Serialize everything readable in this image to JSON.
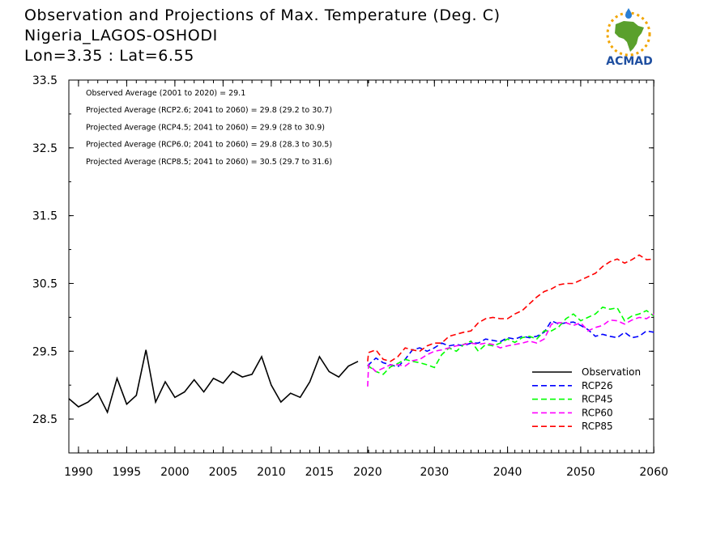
{
  "header": {
    "line1": "Observation and Projections of Max. Temperature (Deg. C)",
    "line2": "Nigeria_LAGOS-OSHODI",
    "line3": "Lon=3.35 : Lat=6.55"
  },
  "logo": {
    "text": "ACMAD",
    "icon": "africa-map-logo",
    "colors": {
      "africa": "#5aa02c",
      "text": "#1f4fa0",
      "sun": "#f2a500",
      "drop": "#2a7fd4"
    }
  },
  "annotations": [
    "Observed Average (2001 to 2020) = 29.1",
    "Projected Average (RCP2.6; 2041 to 2060) = 29.8 (29.2 to 30.7)",
    "Projected Average (RCP4.5; 2041 to 2060) = 29.9 (28 to 30.9)",
    "Projected Average (RCP6.0; 2041 to 2060) = 29.8 (28.3 to 30.5)",
    "Projected Average (RCP8.5; 2041 to 2060) = 30.5 (29.7 to 31.6)"
  ],
  "chart_data": {
    "type": "line",
    "title": "Observation and Projections of Max. Temperature (Deg. C)",
    "xlabel": "",
    "ylabel": "",
    "x_ticks": [
      "1990",
      "1995",
      "2000",
      "2005",
      "2010",
      "2015",
      "2020",
      "2030",
      "2040",
      "2050",
      "2060"
    ],
    "y_ticks": [
      "28.5",
      "29.5",
      "30.5",
      "31.5",
      "32.5",
      "33.5"
    ],
    "ylim": [
      28,
      33.5
    ],
    "grid": false,
    "legend_placement": "bottom-right",
    "series": [
      {
        "name": "Observation",
        "color": "#000000",
        "dashed": false,
        "x": [
          1989,
          1990,
          1991,
          1992,
          1993,
          1994,
          1995,
          1996,
          1997,
          1998,
          1999,
          2000,
          2001,
          2002,
          2003,
          2004,
          2005,
          2006,
          2007,
          2008,
          2009,
          2010,
          2011,
          2012,
          2013,
          2014,
          2015,
          2016,
          2017,
          2018,
          2019
        ],
        "values": [
          28.8,
          28.68,
          28.75,
          28.88,
          28.6,
          29.1,
          28.72,
          28.85,
          29.52,
          28.75,
          29.05,
          28.82,
          28.9,
          29.08,
          28.9,
          29.1,
          29.03,
          29.2,
          29.12,
          29.16,
          29.42,
          29.0,
          28.75,
          28.88,
          28.82,
          29.05,
          29.42,
          29.2,
          29.12,
          29.28,
          29.35
        ]
      },
      {
        "name": "RCP26",
        "color": "#0000ff",
        "dashed": true,
        "x": [
          2020,
          2021,
          2022,
          2023,
          2024,
          2025,
          2026,
          2027,
          2028,
          2029,
          2030,
          2031,
          2032,
          2033,
          2034,
          2035,
          2036,
          2037,
          2038,
          2039,
          2040,
          2041,
          2042,
          2043,
          2044,
          2045,
          2046,
          2047,
          2048,
          2049,
          2050,
          2051,
          2052,
          2053,
          2054,
          2055,
          2056,
          2057,
          2058,
          2059,
          2060
        ],
        "values": [
          29.28,
          29.3,
          29.4,
          29.33,
          29.3,
          29.27,
          29.38,
          29.52,
          29.55,
          29.5,
          29.55,
          29.62,
          29.58,
          29.6,
          29.58,
          29.62,
          29.62,
          29.68,
          29.66,
          29.64,
          29.7,
          29.68,
          29.72,
          29.7,
          29.72,
          29.78,
          29.95,
          29.9,
          29.92,
          29.93,
          29.88,
          29.82,
          29.72,
          29.75,
          29.72,
          29.7,
          29.78,
          29.7,
          29.72,
          29.8,
          29.78
        ]
      },
      {
        "name": "RCP45",
        "color": "#00ff00",
        "dashed": true,
        "x": [
          2020,
          2021,
          2022,
          2023,
          2024,
          2025,
          2026,
          2027,
          2028,
          2029,
          2030,
          2031,
          2032,
          2033,
          2034,
          2035,
          2036,
          2037,
          2038,
          2039,
          2040,
          2041,
          2042,
          2043,
          2044,
          2045,
          2046,
          2047,
          2048,
          2049,
          2050,
          2051,
          2052,
          2053,
          2054,
          2055,
          2056,
          2057,
          2058,
          2059,
          2060
        ],
        "values": [
          29.3,
          29.28,
          29.2,
          29.16,
          29.27,
          29.32,
          29.38,
          29.35,
          29.33,
          29.3,
          29.26,
          29.45,
          29.55,
          29.5,
          29.6,
          29.65,
          29.5,
          29.6,
          29.58,
          29.62,
          29.68,
          29.63,
          29.7,
          29.72,
          29.68,
          29.8,
          29.8,
          29.86,
          29.98,
          30.05,
          29.95,
          30.0,
          30.05,
          30.15,
          30.12,
          30.14,
          29.95,
          30.02,
          30.05,
          30.1,
          30.02
        ]
      },
      {
        "name": "RCP60",
        "color": "#ff00ff",
        "dashed": true,
        "x": [
          2020,
          2021,
          2022,
          2023,
          2024,
          2025,
          2026,
          2027,
          2028,
          2029,
          2030,
          2031,
          2032,
          2033,
          2034,
          2035,
          2036,
          2037,
          2038,
          2039,
          2040,
          2041,
          2042,
          2043,
          2044,
          2045,
          2046,
          2047,
          2048,
          2049,
          2050,
          2051,
          2052,
          2053,
          2054,
          2055,
          2056,
          2057,
          2058,
          2059,
          2060
        ],
        "values": [
          28.98,
          29.3,
          29.2,
          29.25,
          29.3,
          29.3,
          29.28,
          29.36,
          29.38,
          29.45,
          29.5,
          29.52,
          29.55,
          29.58,
          29.6,
          29.62,
          29.6,
          29.62,
          29.6,
          29.55,
          29.58,
          29.6,
          29.62,
          29.65,
          29.62,
          29.68,
          29.9,
          29.92,
          29.92,
          29.88,
          29.92,
          29.8,
          29.85,
          29.88,
          29.96,
          29.95,
          29.9,
          29.96,
          30.0,
          29.98,
          30.05
        ]
      },
      {
        "name": "RCP85",
        "color": "#ff0000",
        "dashed": true,
        "x": [
          2020,
          2021,
          2022,
          2023,
          2024,
          2025,
          2026,
          2027,
          2028,
          2029,
          2030,
          2031,
          2032,
          2033,
          2034,
          2035,
          2036,
          2037,
          2038,
          2039,
          2040,
          2041,
          2042,
          2043,
          2044,
          2045,
          2046,
          2047,
          2048,
          2049,
          2050,
          2051,
          2052,
          2053,
          2054,
          2055,
          2056,
          2057,
          2058,
          2059,
          2060
        ],
        "values": [
          29.35,
          29.48,
          29.52,
          29.38,
          29.35,
          29.42,
          29.55,
          29.52,
          29.5,
          29.58,
          29.62,
          29.62,
          29.72,
          29.75,
          29.78,
          29.8,
          29.92,
          29.98,
          30.0,
          29.98,
          29.98,
          30.05,
          30.1,
          30.2,
          30.3,
          30.38,
          30.42,
          30.48,
          30.5,
          30.5,
          30.55,
          30.6,
          30.65,
          30.75,
          30.82,
          30.86,
          30.8,
          30.85,
          30.92,
          30.85,
          30.86
        ]
      }
    ]
  }
}
